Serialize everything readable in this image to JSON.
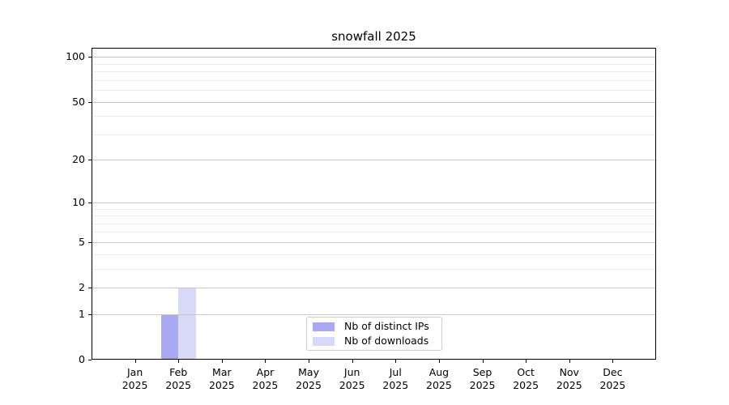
{
  "chart_data": {
    "type": "bar",
    "title": "snowfall 2025",
    "categories": [
      "Jan",
      "Feb",
      "Mar",
      "Apr",
      "May",
      "Jun",
      "Jul",
      "Aug",
      "Sep",
      "Oct",
      "Nov",
      "Dec"
    ],
    "year": "2025",
    "series": [
      {
        "name": "Nb of distinct IPs",
        "color": "#a9a9f3",
        "values": [
          0,
          1,
          0,
          0,
          0,
          0,
          0,
          0,
          0,
          0,
          0,
          0
        ]
      },
      {
        "name": "Nb of downloads",
        "color": "#d8d8f8",
        "values": [
          0,
          2,
          0,
          0,
          0,
          0,
          0,
          0,
          0,
          0,
          0,
          0
        ]
      }
    ],
    "scale": "log1p",
    "ylim": [
      0,
      115
    ],
    "y_major_ticks": [
      0,
      1,
      2,
      5,
      10,
      20,
      50,
      100
    ],
    "y_minor_gridlines": [
      3,
      4,
      6,
      7,
      8,
      9,
      30,
      40,
      60,
      70,
      80,
      90
    ],
    "grid": true,
    "major_grid_color": "#c8c8c8",
    "minor_grid_color": "#ececec",
    "spine_color": "#000000",
    "legend_position": "lower center",
    "xlabel": "",
    "ylabel": ""
  }
}
